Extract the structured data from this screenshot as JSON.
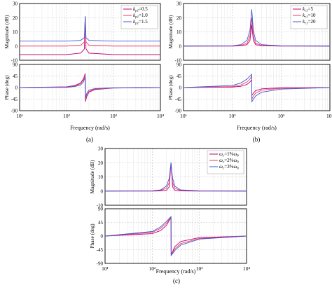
{
  "chart_data": [
    {
      "id": "a",
      "caption": "(a)",
      "type": "line",
      "x_scale": "log",
      "xlim": [
        10,
        10000
      ],
      "x_ticks": [
        10,
        100,
        1000,
        10000
      ],
      "x_tick_labels": [
        "10¹",
        "10²",
        "10³",
        "10⁴"
      ],
      "xlabel": "Frequency  (rad/s)",
      "grid": true,
      "legend_placement": "top-right",
      "magnitude": {
        "ylabel": "Magnitude (dB)",
        "ylim": [
          -10,
          30
        ],
        "y_ticks": [
          -10,
          0,
          10,
          20,
          30
        ],
        "series": [
          {
            "name_main": "k",
            "name_sub": "p1",
            "name_suffix": "=0.5",
            "color": "#c0006f",
            "x": [
              10,
              100,
              200,
              240,
              250,
              260,
              300,
              1000,
              10000
            ],
            "y": [
              -6,
              -6,
              -5,
              -2,
              20,
              -2,
              -5,
              -6,
              -6
            ]
          },
          {
            "name_main": "k",
            "name_sub": "p1",
            "name_suffix": "=1.0",
            "color": "#ee3b6a",
            "x": [
              10,
              100,
              200,
              240,
              250,
              260,
              300,
              1000,
              10000
            ],
            "y": [
              0,
              0,
              0.5,
              3,
              21,
              3,
              0.5,
              0,
              0
            ]
          },
          {
            "name_main": "k",
            "name_sub": "p1",
            "name_suffix": "=1.5",
            "color": "#3a5bd8",
            "x": [
              10,
              100,
              200,
              240,
              250,
              260,
              300,
              1000,
              10000
            ],
            "y": [
              3.5,
              3.5,
              4,
              6,
              21,
              6,
              4,
              3.5,
              3.5
            ]
          }
        ]
      },
      "phase": {
        "ylabel": "Phase (deg)",
        "ylim": [
          -90,
          90
        ],
        "y_ticks": [
          -90,
          -45,
          0,
          45,
          90
        ],
        "series": [
          {
            "color": "#c0006f",
            "x": [
              10,
              100,
              150,
              200,
              230,
              250,
              252,
              270,
              300,
              400,
              1000,
              10000
            ],
            "y": [
              0,
              3,
              8,
              18,
              35,
              55,
              -55,
              -35,
              -18,
              -8,
              -2,
              0
            ]
          },
          {
            "color": "#ee3b6a",
            "x": [
              10,
              100,
              150,
              200,
              230,
              250,
              252,
              270,
              300,
              400,
              1000,
              10000
            ],
            "y": [
              0,
              2,
              6,
              15,
              30,
              50,
              -50,
              -30,
              -15,
              -6,
              -2,
              0
            ]
          },
          {
            "color": "#3a5bd8",
            "x": [
              10,
              100,
              150,
              200,
              230,
              250,
              252,
              270,
              300,
              400,
              1000,
              10000
            ],
            "y": [
              0,
              1,
              4,
              10,
              22,
              42,
              -42,
              -22,
              -10,
              -4,
              -1,
              0
            ]
          }
        ]
      }
    },
    {
      "id": "b",
      "caption": "(b)",
      "type": "line",
      "x_scale": "log",
      "xlim": [
        10,
        10000
      ],
      "x_ticks": [
        10,
        100,
        1000,
        10000
      ],
      "x_tick_labels": [
        "10¹",
        "10²",
        "10³",
        "10⁴"
      ],
      "xlabel": "Frequency  (rad/s)",
      "grid": true,
      "legend_placement": "top-right",
      "magnitude": {
        "ylabel": "Magnitude (dB)",
        "ylim": [
          -10,
          30
        ],
        "y_ticks": [
          -10,
          0,
          10,
          20,
          30
        ],
        "series": [
          {
            "name_main": "k",
            "name_sub": "r1",
            "name_suffix": "=5",
            "color": "#c0006f",
            "x": [
              10,
              100,
              150,
              200,
              230,
              250,
              270,
              300,
              400,
              1000,
              10000
            ],
            "y": [
              0,
              0,
              0.2,
              1,
              4,
              15,
              4,
              1,
              0.2,
              0,
              0
            ]
          },
          {
            "name_main": "k",
            "name_sub": "r1",
            "name_suffix": "=10",
            "color": "#ee3b6a",
            "x": [
              10,
              100,
              150,
              200,
              230,
              250,
              270,
              300,
              400,
              1000,
              10000
            ],
            "y": [
              0,
              0.1,
              0.5,
              2,
              7,
              20,
              7,
              2,
              0.5,
              0.1,
              0
            ]
          },
          {
            "name_main": "k",
            "name_sub": "r1",
            "name_suffix": "=20",
            "color": "#3a5bd8",
            "x": [
              10,
              100,
              150,
              200,
              230,
              250,
              270,
              300,
              400,
              1000,
              10000
            ],
            "y": [
              0,
              0.2,
              1,
              4,
              11,
              26,
              11,
              4,
              1,
              0.2,
              0
            ]
          }
        ]
      },
      "phase": {
        "ylabel": "Phase (deg)",
        "ylim": [
          -90,
          90
        ],
        "y_ticks": [
          -90,
          -45,
          0,
          45,
          90
        ],
        "series": [
          {
            "color": "#c0006f",
            "x": [
              10,
              100,
              150,
              200,
              230,
              250,
              252,
              270,
              300,
              400,
              1000,
              10000
            ],
            "y": [
              0,
              2,
              5,
              12,
              22,
              30,
              -30,
              -22,
              -12,
              -5,
              -1,
              0
            ]
          },
          {
            "color": "#ee3b6a",
            "x": [
              10,
              100,
              150,
              200,
              230,
              250,
              252,
              270,
              300,
              400,
              1000,
              10000
            ],
            "y": [
              0,
              4,
              10,
              22,
              33,
              45,
              -45,
              -33,
              -22,
              -10,
              -3,
              0
            ]
          },
          {
            "color": "#3a5bd8",
            "x": [
              10,
              100,
              150,
              200,
              230,
              250,
              252,
              270,
              300,
              400,
              1000,
              10000
            ],
            "y": [
              0,
              8,
              18,
              33,
              45,
              52,
              -55,
              -45,
              -33,
              -18,
              -6,
              0
            ]
          }
        ]
      }
    },
    {
      "id": "c",
      "caption": "(c)",
      "type": "line",
      "x_scale": "log",
      "xlim": [
        10,
        10000
      ],
      "x_ticks": [
        10,
        100,
        1000,
        10000
      ],
      "x_tick_labels": [
        "10¹",
        "10²",
        "10³",
        "10⁴"
      ],
      "xlabel": "Frequency  (rad/s)",
      "grid": true,
      "legend_placement": "top-right",
      "magnitude": {
        "ylabel": "Magnitude (dB)",
        "ylim": [
          -10,
          30
        ],
        "y_ticks": [
          -10,
          0,
          10,
          20,
          30
        ],
        "series": [
          {
            "name_main": "ω",
            "name_sub": "c",
            "name_suffix": "=1%ω",
            "name_sub2": "0",
            "color": "#c0006f",
            "x": [
              10,
              100,
              150,
              200,
              230,
              250,
              270,
              300,
              400,
              1000,
              10000
            ],
            "y": [
              0,
              0,
              0.1,
              0.6,
              3,
              20,
              3,
              0.6,
              0.1,
              0,
              0
            ]
          },
          {
            "name_main": "ω",
            "name_sub": "c",
            "name_suffix": "=2%ω",
            "name_sub2": "0",
            "color": "#ee3b6a",
            "x": [
              10,
              100,
              150,
              200,
              230,
              250,
              270,
              300,
              400,
              1000,
              10000
            ],
            "y": [
              0,
              0.1,
              0.4,
              2,
              6,
              20,
              6,
              2,
              0.4,
              0.1,
              0
            ]
          },
          {
            "name_main": "ω",
            "name_sub": "c",
            "name_suffix": "=3%ω",
            "name_sub2": "0",
            "color": "#3a5bd8",
            "x": [
              10,
              100,
              150,
              200,
              230,
              250,
              270,
              300,
              400,
              1000,
              10000
            ],
            "y": [
              0,
              0.2,
              0.8,
              3.5,
              9,
              20,
              9,
              3.5,
              0.8,
              0.2,
              0
            ]
          }
        ]
      },
      "phase": {
        "ylabel": "Phase (deg)",
        "ylim": [
          -90,
          90
        ],
        "y_ticks": [
          -90,
          -45,
          0,
          45,
          90
        ],
        "series": [
          {
            "color": "#c0006f",
            "x": [
              10,
              100,
              150,
              200,
              230,
              250,
              252,
              270,
              300,
              400,
              1000,
              10000
            ],
            "y": [
              0,
              8,
              18,
              35,
              52,
              60,
              -60,
              -52,
              -35,
              -18,
              -5,
              0
            ]
          },
          {
            "color": "#ee3b6a",
            "x": [
              10,
              100,
              150,
              200,
              230,
              250,
              252,
              270,
              300,
              400,
              1000,
              10000
            ],
            "y": [
              0,
              12,
              25,
              42,
              55,
              62,
              -62,
              -55,
              -42,
              -25,
              -8,
              0
            ]
          },
          {
            "color": "#3a5bd8",
            "x": [
              10,
              100,
              150,
              200,
              230,
              250,
              252,
              270,
              300,
              400,
              1000,
              10000
            ],
            "y": [
              0,
              15,
              30,
              48,
              58,
              64,
              -64,
              -58,
              -48,
              -30,
              -10,
              0
            ]
          }
        ]
      }
    }
  ]
}
